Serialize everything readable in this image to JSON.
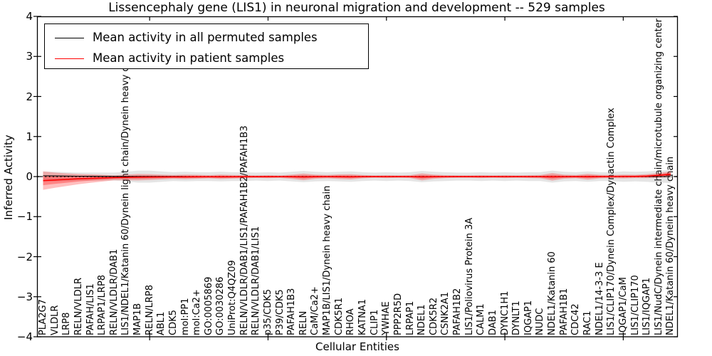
{
  "title": "Lissencephaly gene (LIS1) in neuronal migration and development -- 529 samples",
  "legend": {
    "items": [
      {
        "label": "Mean activity in all permuted samples",
        "color": "#000000"
      },
      {
        "label": "Mean activity in patient samples",
        "color": "#ff0000"
      }
    ]
  },
  "axes": {
    "x_label": "Cellular Entities",
    "y_label": "Inferred Activity",
    "y_tick_labels": [
      "4",
      "3",
      "2",
      "1",
      "0",
      "−1",
      "−2",
      "−3",
      "−4"
    ],
    "y_tick_values": [
      4,
      3,
      2,
      1,
      0,
      -1,
      -2,
      -3,
      -4
    ],
    "x_tick_values": [
      10,
      20,
      30,
      40,
      50
    ],
    "ylim": [
      -4,
      4
    ]
  },
  "chart_data": {
    "type": "line",
    "title": "Lissencephaly gene (LIS1) in neuronal migration and development -- 529 samples",
    "xlabel": "Cellular Entities",
    "ylabel": "Inferred Activity",
    "ylim": [
      -4,
      4
    ],
    "grid": false,
    "legend_position": "upper left",
    "zero_line": "dotted",
    "categories": [
      "PLA2G7",
      "VLDLR",
      "LRP8",
      "RELN/VLDLR",
      "PAFAH/LIS1",
      "LRPAP1/LRP8",
      "RELN/VLDLR/DAB1",
      "LIS1/NDEL1/Katanin 60/Dynein light chain/Dynein heavy chain",
      "MAP1B",
      "RELN/LRP8",
      "ABL1",
      "CDK5",
      "mol:PP1",
      "mol:Ca2+",
      "GO:0005869",
      "GO:0030286",
      "UniProt:Q4QZ09",
      "RELN/VLDLR/DAB1/LIS1/PAFAH1B2/PAFAH1B3",
      "RELN/VLDLR/DAB1/LIS1",
      "p35/CDK5",
      "P39/CDK5",
      "PAFAH1B3",
      "RELN",
      "CaM/Ca2+",
      "MAP1B/LIS1/Dynein heavy chain",
      "CDK5R1",
      "RHOA",
      "KATNA1",
      "CLIP1",
      "YWHAE",
      "PPP2R5D",
      "LRPAP1",
      "NDEL1",
      "CDK5R2",
      "CSNK2A1",
      "PAFAH1B2",
      "LIS1/Poliovirus Protein 3A",
      "CALM1",
      "DAB1",
      "DYNC1H1",
      "DYNLT1",
      "IQGAP1",
      "NUDC",
      "NDEL1/Katanin 60",
      "PAFAH1B1",
      "CDC42",
      "RAC1",
      "NDEL1/14-3-3 E",
      "LIS1/CLIP170/Dynein Complex/Dynactin Complex",
      "IQGAP1/CaM",
      "LIS1/CLIP170",
      "LIS1/IQGAP1",
      "LIS1/NudC/Dynein intermediate chain/microtubule organizing center",
      "NDEL1/Katanin 60/Dynein heavy chain"
    ],
    "series": [
      {
        "name": "Mean activity in all permuted samples",
        "color": "#000000",
        "band_color": "#888888",
        "values": [
          0.02,
          0.016,
          0.012,
          0.009,
          0.007,
          0.005,
          0.004,
          0.003,
          0.002,
          0.002,
          0.001,
          0.001,
          0,
          0,
          0,
          0,
          0,
          0,
          0,
          0,
          0,
          0,
          0,
          0,
          0,
          0,
          0,
          0,
          0,
          0,
          0,
          0,
          0,
          0,
          0,
          0,
          0,
          0,
          0,
          0,
          0,
          0,
          0,
          0,
          0,
          0,
          0,
          0,
          0,
          0,
          0,
          0,
          0,
          0
        ],
        "band_upper": [
          0.13,
          0.12,
          0.11,
          0.1,
          0.1,
          0.1,
          0.1,
          0.12,
          0.15,
          0.15,
          0.13,
          0.11,
          0.12,
          0.11,
          0.11,
          0.12,
          0.11,
          0.11,
          0.1,
          0.11,
          0.1,
          0.12,
          0.14,
          0.12,
          0.11,
          0.12,
          0.13,
          0.11,
          0.1,
          0.11,
          0.1,
          0.11,
          0.14,
          0.12,
          0.11,
          0.1,
          0.1,
          0.11,
          0.1,
          0.11,
          0.1,
          0.11,
          0.11,
          0.15,
          0.12,
          0.11,
          0.13,
          0.11,
          0.11,
          0.13,
          0.12,
          0.13,
          0.15,
          0.16
        ],
        "band_lower": [
          -0.13,
          -0.12,
          -0.11,
          -0.1,
          -0.1,
          -0.1,
          -0.1,
          -0.12,
          -0.15,
          -0.15,
          -0.13,
          -0.11,
          -0.12,
          -0.11,
          -0.11,
          -0.12,
          -0.11,
          -0.11,
          -0.1,
          -0.11,
          -0.1,
          -0.12,
          -0.14,
          -0.12,
          -0.11,
          -0.12,
          -0.13,
          -0.11,
          -0.1,
          -0.11,
          -0.1,
          -0.11,
          -0.14,
          -0.12,
          -0.11,
          -0.1,
          -0.1,
          -0.11,
          -0.1,
          -0.11,
          -0.1,
          -0.11,
          -0.11,
          -0.15,
          -0.12,
          -0.11,
          -0.13,
          -0.11,
          -0.11,
          -0.13,
          -0.12,
          -0.13,
          -0.15,
          -0.16
        ]
      },
      {
        "name": "Mean activity in patient samples",
        "color": "#ff0000",
        "band_color": "#ff0000",
        "values": [
          -0.1,
          -0.085,
          -0.07,
          -0.055,
          -0.045,
          -0.035,
          -0.025,
          -0.02,
          -0.015,
          -0.012,
          -0.01,
          -0.008,
          -0.008,
          -0.006,
          -0.005,
          -0.006,
          -0.005,
          -0.004,
          -0.003,
          -0.003,
          -0.002,
          -0.004,
          -0.008,
          -0.003,
          -0.002,
          -0.003,
          -0.005,
          -0.002,
          -0.001,
          -0.002,
          -0.001,
          -0.002,
          -0.008,
          -0.003,
          -0.002,
          -0.001,
          -0.001,
          -0.002,
          -0.001,
          -0.002,
          -0.001,
          -0.002,
          -0.002,
          -0.006,
          -0.002,
          -0.001,
          -0.004,
          -0.001,
          0.0,
          0.002,
          0.003,
          0.01,
          0.03,
          0.06
        ],
        "band_upper": [
          0.13,
          0.1,
          0.08,
          0.065,
          0.055,
          0.045,
          0.03,
          0.05,
          0.065,
          0.06,
          0.05,
          0.04,
          0.05,
          0.045,
          0.035,
          0.05,
          0.04,
          0.035,
          0.03,
          0.035,
          0.03,
          0.05,
          0.075,
          0.05,
          0.04,
          0.055,
          0.06,
          0.04,
          0.03,
          0.035,
          0.03,
          0.035,
          0.08,
          0.05,
          0.035,
          0.03,
          0.03,
          0.035,
          0.03,
          0.035,
          0.03,
          0.035,
          0.04,
          0.09,
          0.05,
          0.04,
          0.07,
          0.045,
          0.04,
          0.05,
          0.045,
          0.06,
          0.09,
          0.13
        ],
        "band_lower": [
          -0.33,
          -0.28,
          -0.235,
          -0.19,
          -0.155,
          -0.125,
          -0.09,
          -0.09,
          -0.095,
          -0.085,
          -0.07,
          -0.055,
          -0.065,
          -0.055,
          -0.045,
          -0.06,
          -0.05,
          -0.042,
          -0.036,
          -0.04,
          -0.035,
          -0.058,
          -0.09,
          -0.056,
          -0.044,
          -0.06,
          -0.07,
          -0.044,
          -0.032,
          -0.038,
          -0.032,
          -0.038,
          -0.095,
          -0.056,
          -0.038,
          -0.032,
          -0.032,
          -0.038,
          -0.032,
          -0.038,
          -0.032,
          -0.038,
          -0.044,
          -0.1,
          -0.054,
          -0.042,
          -0.078,
          -0.047,
          -0.04,
          -0.046,
          -0.038,
          -0.04,
          -0.03,
          -0.01
        ]
      }
    ]
  }
}
